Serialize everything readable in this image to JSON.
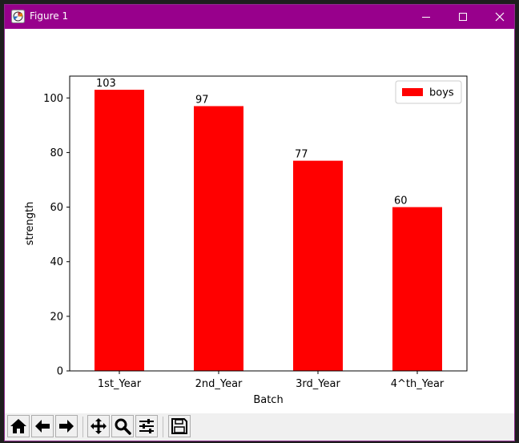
{
  "window": {
    "title": "Figure 1",
    "titlebar_color": "#98008c",
    "icon": "matplotlib-figure-icon"
  },
  "controls": {
    "minimize_icon": "minimize-icon",
    "maximize_icon": "maximize-icon",
    "close_icon": "close-icon"
  },
  "toolbar": {
    "buttons": [
      {
        "name": "home-button",
        "icon": "home-icon"
      },
      {
        "name": "back-button",
        "icon": "arrow-left-icon"
      },
      {
        "name": "forward-button",
        "icon": "arrow-right-icon"
      },
      {
        "name": "pan-button",
        "icon": "move-icon"
      },
      {
        "name": "zoom-button",
        "icon": "magnifier-icon"
      },
      {
        "name": "subplots-button",
        "icon": "sliders-icon"
      },
      {
        "name": "save-button",
        "icon": "floppy-disk-icon"
      }
    ]
  },
  "chart_data": {
    "type": "bar",
    "categories": [
      "1st_Year",
      "2nd_Year",
      "3rd_Year",
      "4^th_Year"
    ],
    "series": [
      {
        "name": "boys",
        "values": [
          103,
          97,
          77,
          60
        ],
        "color": "#ff0000"
      }
    ],
    "data_labels": [
      "103",
      "97",
      "77",
      "60"
    ],
    "title": "",
    "xlabel": "Batch",
    "ylabel": "strength",
    "ylim": [
      0,
      108
    ],
    "yticks": [
      0,
      20,
      40,
      60,
      80,
      100
    ],
    "grid": false,
    "legend_position": "top-right"
  }
}
